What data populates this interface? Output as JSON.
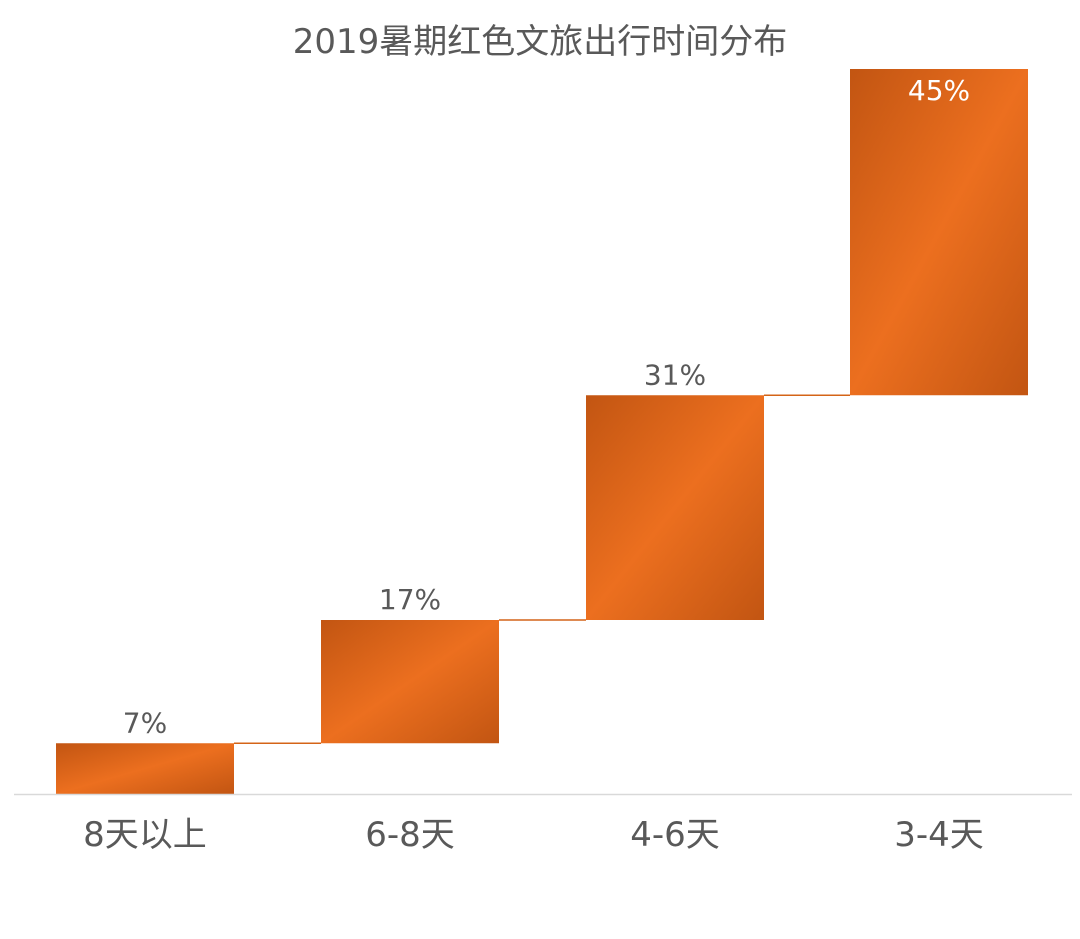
{
  "chart_data": {
    "type": "bar",
    "subtype": "waterfall",
    "title": "2019暑期红色文旅出行时间分布",
    "categories": [
      "8天以上",
      "6-8天",
      "4-6天",
      "3-4天"
    ],
    "values": [
      7,
      17,
      31,
      45
    ],
    "cumulative_top": [
      7,
      24,
      55,
      100
    ],
    "labels": [
      "7%",
      "17%",
      "31%",
      "45%"
    ],
    "xlabel": "",
    "ylabel": "",
    "ylim": [
      0,
      100
    ],
    "grid": false,
    "legend": "none"
  },
  "colors": {
    "bar_light": "#ec6f1f",
    "bar_dark": "#c25512",
    "connector": "#d46418",
    "axis": "#d9d9d9",
    "text": "#595959",
    "label_inside": "#ffffff"
  }
}
